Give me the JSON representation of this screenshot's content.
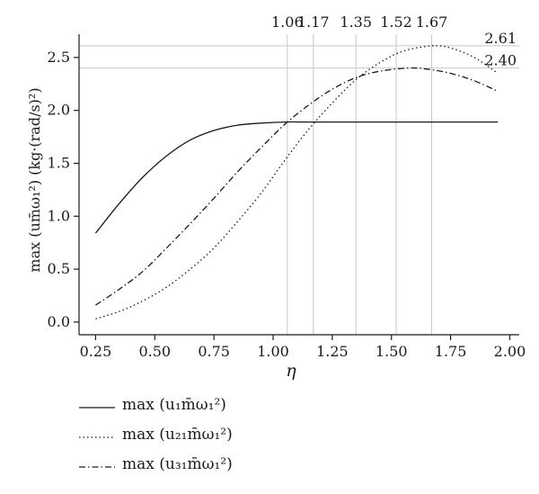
{
  "chart_data": {
    "type": "line",
    "title": "",
    "xlabel": "η",
    "ylabel": "max (um̄ω₁²) (kg·(rad/s)²)",
    "xlim": [
      0.18,
      2.04
    ],
    "ylim": [
      -0.12,
      2.72
    ],
    "grid": false,
    "legend_position": "bottom",
    "x_ticks": [
      0.25,
      0.5,
      0.75,
      1.0,
      1.25,
      1.5,
      1.75,
      2.0
    ],
    "x_tick_labels": [
      "0.25",
      "0.50",
      "0.75",
      "1.00",
      "1.25",
      "1.50",
      "1.75",
      "2.00"
    ],
    "y_ticks": [
      0.0,
      0.5,
      1.0,
      1.5,
      2.0,
      2.5
    ],
    "y_tick_labels": [
      "0.0",
      "0.5",
      "1.0",
      "1.5",
      "2.0",
      "2.5"
    ],
    "vlines": [
      1.06,
      1.17,
      1.35,
      1.52,
      1.67
    ],
    "vline_labels": [
      "1.06",
      "1.17",
      "1.35",
      "1.52",
      "1.67"
    ],
    "hlines": [
      2.61,
      2.4
    ],
    "hline_labels": [
      "2.61",
      "2.40"
    ],
    "series": [
      {
        "name": "max (u₁m̄ω₁²)",
        "style": "solid",
        "x": [
          0.25,
          0.35,
          0.45,
          0.55,
          0.65,
          0.75,
          0.85,
          0.95,
          1.05,
          1.15,
          1.3,
          1.5,
          1.7,
          1.95
        ],
        "values": [
          0.84,
          1.12,
          1.37,
          1.57,
          1.72,
          1.81,
          1.86,
          1.88,
          1.89,
          1.89,
          1.89,
          1.89,
          1.89,
          1.89
        ]
      },
      {
        "name": "max (u₂₁m̄ω₁²)",
        "style": "dotted",
        "x": [
          0.25,
          0.35,
          0.45,
          0.55,
          0.65,
          0.75,
          0.85,
          0.95,
          1.05,
          1.15,
          1.25,
          1.35,
          1.45,
          1.55,
          1.67,
          1.75,
          1.85,
          1.95
        ],
        "values": [
          0.03,
          0.1,
          0.2,
          0.33,
          0.5,
          0.7,
          0.95,
          1.22,
          1.53,
          1.82,
          2.07,
          2.29,
          2.45,
          2.56,
          2.61,
          2.59,
          2.5,
          2.35
        ]
      },
      {
        "name": "max (u₃₁m̄ω₁²)",
        "style": "dashdot",
        "x": [
          0.25,
          0.35,
          0.45,
          0.55,
          0.65,
          0.75,
          0.85,
          0.95,
          1.05,
          1.15,
          1.25,
          1.35,
          1.45,
          1.57,
          1.65,
          1.75,
          1.85,
          1.95
        ],
        "values": [
          0.16,
          0.31,
          0.48,
          0.7,
          0.93,
          1.17,
          1.42,
          1.65,
          1.87,
          2.05,
          2.2,
          2.31,
          2.37,
          2.4,
          2.39,
          2.35,
          2.28,
          2.18
        ]
      }
    ]
  },
  "legend": {
    "items": [
      {
        "label": "max (u₁m̄ω₁²)",
        "style": "solid"
      },
      {
        "label": "max (u₂₁m̄ω₁²)",
        "style": "dotted"
      },
      {
        "label": "max (u₃₁m̄ω₁²)",
        "style": "dashdot"
      }
    ]
  },
  "colors": {
    "line": "#1a1a1a",
    "axis": "#1a1a1a",
    "reference": "#c8c8c8"
  }
}
